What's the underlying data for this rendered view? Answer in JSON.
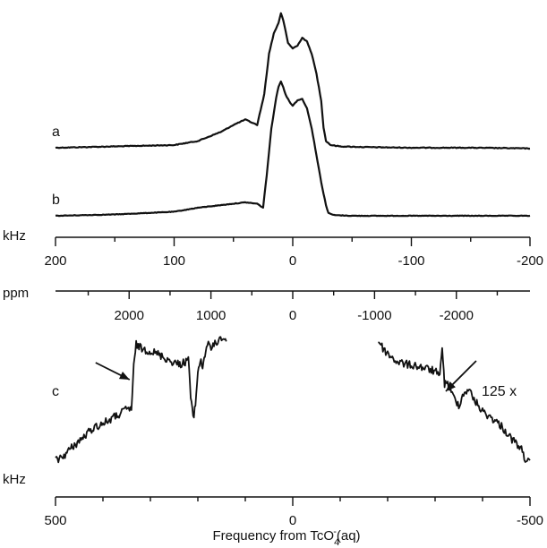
{
  "chart_data": {
    "type": "line",
    "xlabel_parts": {
      "prefix": "Frequency from TcO",
      "sub": "4",
      "sup": "-",
      "suffix": "(aq)"
    },
    "traces": {
      "a": {
        "label": "a"
      },
      "b": {
        "label": "b"
      },
      "c": {
        "label": "c",
        "scale_label": "125 x"
      }
    },
    "axes": [
      {
        "name": "top-khz-axis",
        "unit": "kHz",
        "range": [
          200,
          -200
        ],
        "major_ticks": [
          200,
          100,
          0,
          -100,
          -200
        ],
        "tick_labels": [
          "200",
          "100",
          "0",
          "-100",
          "-200"
        ],
        "minor_ticks": [
          150,
          50,
          -50,
          -150
        ]
      },
      {
        "name": "ppm-axis",
        "unit": "ppm",
        "range": [
          2900,
          -2900
        ],
        "major_ticks": [
          2000,
          1000,
          0,
          -1000,
          -2000
        ],
        "tick_labels": [
          "2000",
          "1000",
          "0",
          "-1000",
          "-2000"
        ],
        "minor_ticks": [
          2500,
          1500,
          500,
          -500,
          -1500,
          -2500
        ]
      },
      {
        "name": "bottom-khz-axis",
        "unit": "kHz",
        "range": [
          500,
          -500
        ],
        "major_ticks": [
          500,
          0,
          -500
        ],
        "tick_labels": [
          "500",
          "0",
          "-500"
        ],
        "minor_ticks": [
          400,
          300,
          200,
          100,
          -100,
          -200,
          -300,
          -400
        ]
      }
    ],
    "series": [
      {
        "name": "a",
        "x_unit": "kHz",
        "x": [
          200,
          150,
          100,
          80,
          60,
          50,
          40,
          30,
          24,
          20,
          16,
          12,
          10,
          8,
          4,
          0,
          -4,
          -8,
          -12,
          -16,
          -20,
          -24,
          -26,
          -28,
          -32,
          -40,
          -60,
          -100,
          -150,
          -200
        ],
        "y": [
          0.0,
          0.01,
          0.02,
          0.05,
          0.12,
          0.17,
          0.21,
          0.17,
          0.4,
          0.7,
          0.85,
          0.93,
          1.0,
          0.95,
          0.78,
          0.74,
          0.76,
          0.82,
          0.79,
          0.7,
          0.55,
          0.35,
          0.15,
          0.05,
          0.02,
          0.01,
          0.005,
          0.0,
          0.0,
          -0.005
        ]
      },
      {
        "name": "b",
        "x_unit": "kHz",
        "x": [
          200,
          150,
          100,
          80,
          60,
          50,
          40,
          30,
          25,
          22,
          18,
          14,
          12,
          10,
          8,
          6,
          2,
          0,
          -4,
          -8,
          -12,
          -16,
          -20,
          -24,
          -28,
          -30,
          -35,
          -50,
          -100,
          -150,
          -200
        ],
        "y": [
          0.0,
          0.01,
          0.03,
          0.06,
          0.08,
          0.09,
          0.1,
          0.09,
          0.06,
          0.3,
          0.65,
          0.88,
          0.96,
          1.0,
          0.96,
          0.9,
          0.84,
          0.82,
          0.86,
          0.87,
          0.8,
          0.65,
          0.45,
          0.25,
          0.08,
          0.02,
          0.005,
          0.0,
          0.0,
          0.0,
          0.0
        ]
      },
      {
        "name": "c-left",
        "x_unit": "kHz",
        "x": [
          500,
          480,
          460,
          440,
          420,
          400,
          380,
          360,
          350,
          340,
          335,
          330,
          320,
          300,
          280,
          260,
          240,
          225,
          220,
          215,
          210,
          205,
          200,
          195,
          190,
          185,
          180,
          170,
          160,
          150,
          140
        ],
        "y": [
          0.08,
          0.13,
          0.2,
          0.26,
          0.33,
          0.36,
          0.4,
          0.44,
          0.47,
          0.47,
          0.78,
          0.95,
          0.92,
          0.9,
          0.87,
          0.83,
          0.8,
          0.82,
          0.86,
          0.55,
          0.4,
          0.5,
          0.75,
          0.83,
          0.78,
          0.88,
          0.95,
          0.92,
          0.97,
          1.0,
          0.98
        ]
      },
      {
        "name": "c-right",
        "x_unit": "kHz",
        "x": [
          -180,
          -190,
          -200,
          -220,
          -240,
          -260,
          -280,
          -300,
          -310,
          -315,
          -320,
          -325,
          -330,
          -340,
          -350,
          -360,
          -370,
          -380,
          -390,
          -400,
          -420,
          -440,
          -460,
          -480,
          -490,
          -500
        ],
        "y": [
          0.98,
          0.92,
          0.88,
          0.82,
          0.8,
          0.79,
          0.77,
          0.75,
          0.7,
          0.95,
          0.64,
          0.68,
          0.62,
          0.55,
          0.5,
          0.58,
          0.62,
          0.55,
          0.5,
          0.45,
          0.4,
          0.34,
          0.25,
          0.18,
          0.1,
          0.06
        ]
      }
    ],
    "annotations": [
      {
        "type": "arrow",
        "target_series": "c-left",
        "x": 340
      },
      {
        "type": "arrow",
        "target_series": "c-right",
        "x": -315
      }
    ],
    "legend": "none",
    "grid": false
  }
}
